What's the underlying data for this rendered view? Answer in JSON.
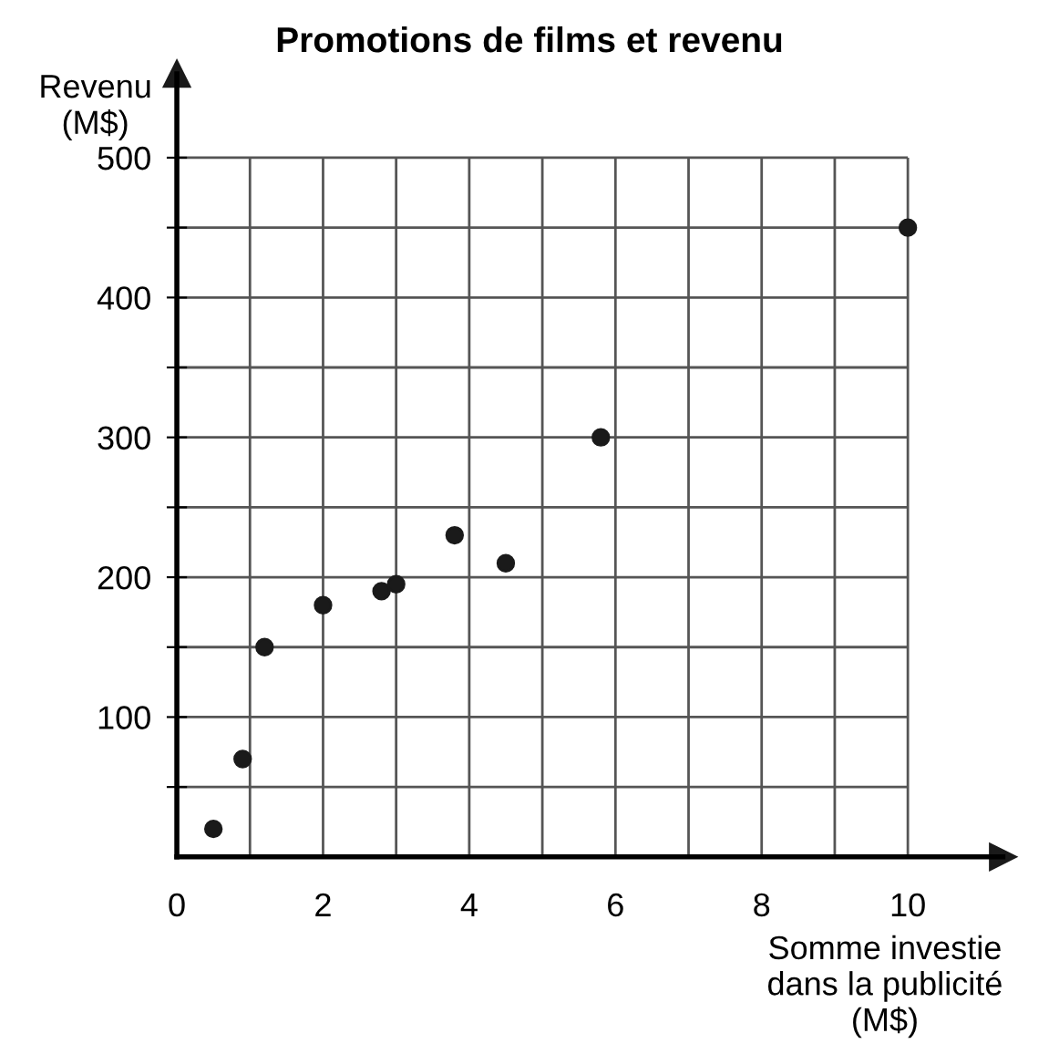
{
  "chart_data": {
    "type": "scatter",
    "title": "Promotions de films et revenu",
    "xlabel": "Somme investie\ndans la publicité\n(M$)",
    "ylabel": "Revenu\n(M$)",
    "x": [
      0.5,
      0.9,
      1.2,
      2.0,
      2.8,
      3.0,
      3.8,
      4.5,
      5.8,
      10
    ],
    "series": [
      {
        "color": "#1a1a1a",
        "values": [
          20,
          70,
          150,
          180,
          190,
          195,
          230,
          210,
          300,
          450
        ]
      }
    ],
    "xlim": [
      0,
      11.3
    ],
    "ylim": [
      0,
      560
    ],
    "xticks": [
      0,
      {
        "value": 1,
        "label": null
      },
      2,
      {
        "value": 3,
        "label": null
      },
      4,
      {
        "value": 5,
        "label": null
      },
      6,
      {
        "value": 7,
        "label": null
      },
      8,
      {
        "value": 9,
        "label": null
      },
      10
    ],
    "yticks": [
      {
        "value": 50,
        "label": null
      },
      100,
      {
        "value": 150,
        "label": null
      },
      200,
      {
        "value": 250,
        "label": null
      },
      300,
      {
        "value": 350,
        "label": null
      },
      400,
      {
        "value": 450,
        "label": null
      },
      500
    ],
    "grid": true,
    "marker": "circle"
  }
}
